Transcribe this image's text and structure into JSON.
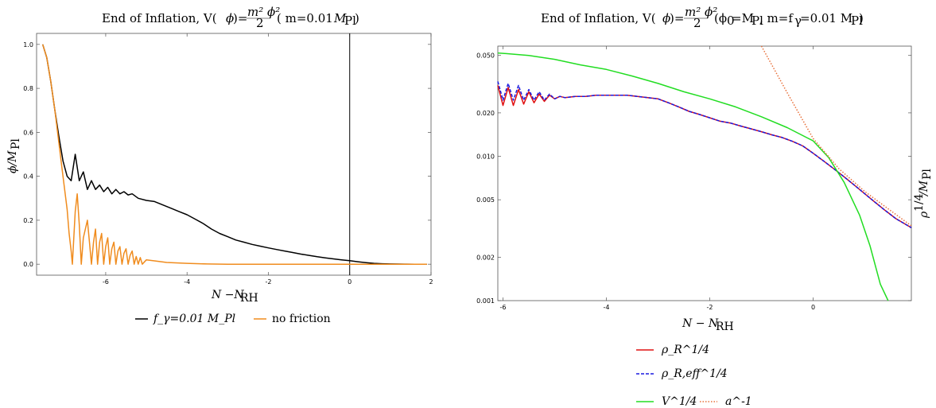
{
  "chart_data": [
    {
      "type": "line",
      "title": "End of Inflation, V(ϕ)= m²ϕ² / 2  ( m=0.01 M_Pl)",
      "title_parts": {
        "pre": "End of Inflation, V(",
        "phi": "ϕ",
        "mid": ")=",
        "num": "m² ϕ²",
        "den": "2",
        "post": "( m=0.01 ",
        "M": "M",
        "sub": "Pl",
        "close": ")"
      },
      "xlabel": "N −N_RH",
      "xlabel_parts": {
        "main": "N −N",
        "sub": "RH"
      },
      "ylabel": "ϕ/M_Pl",
      "ylabel_parts": {
        "main": "ϕ/M",
        "sub": "Pl"
      },
      "xlim": [
        -7.7,
        2.0
      ],
      "ylim": [
        -0.05,
        1.05
      ],
      "x_ticks": [
        -6,
        -4,
        -2,
        0,
        2
      ],
      "x_tick_labels": [
        "-6",
        "-4",
        "-2",
        "0",
        "2"
      ],
      "y_ticks": [
        0.0,
        0.2,
        0.4,
        0.6,
        0.8,
        1.0
      ],
      "y_tick_labels": [
        "0.0",
        "0.2",
        "0.4",
        "0.6",
        "0.8",
        "1.0"
      ],
      "vertical_line_x": 0,
      "legend_position": "bottom",
      "series": [
        {
          "name": "f_γ=0.01 M_Pl",
          "color": "#000000",
          "x": [
            -7.55,
            -7.45,
            -7.35,
            -7.25,
            -7.15,
            -7.05,
            -6.95,
            -6.85,
            -6.75,
            -6.65,
            -6.55,
            -6.45,
            -6.35,
            -6.25,
            -6.15,
            -6.05,
            -5.95,
            -5.85,
            -5.75,
            -5.65,
            -5.55,
            -5.45,
            -5.35,
            -5.2,
            -5.0,
            -4.8,
            -4.6,
            -4.4,
            -4.2,
            -4.0,
            -3.8,
            -3.6,
            -3.4,
            -3.2,
            -3.0,
            -2.8,
            -2.6,
            -2.4,
            -2.2,
            -2.0,
            -1.8,
            -1.6,
            -1.4,
            -1.2,
            -1.0,
            -0.8,
            -0.6,
            -0.4,
            -0.2,
            0.0,
            0.2,
            0.4,
            0.6,
            0.8,
            1.0,
            1.2,
            1.4,
            1.6,
            1.9
          ],
          "y": [
            1.0,
            0.94,
            0.83,
            0.7,
            0.58,
            0.47,
            0.4,
            0.38,
            0.5,
            0.38,
            0.42,
            0.34,
            0.38,
            0.34,
            0.36,
            0.33,
            0.35,
            0.32,
            0.34,
            0.32,
            0.33,
            0.315,
            0.32,
            0.3,
            0.29,
            0.285,
            0.27,
            0.255,
            0.24,
            0.225,
            0.205,
            0.185,
            0.16,
            0.14,
            0.125,
            0.11,
            0.1,
            0.09,
            0.082,
            0.074,
            0.067,
            0.06,
            0.053,
            0.046,
            0.04,
            0.034,
            0.029,
            0.024,
            0.02,
            0.016,
            0.011,
            0.007,
            0.004,
            0.002,
            0.001,
            0.0005,
            0.0002,
            0.0001,
            0.0
          ]
        },
        {
          "name": "no friction",
          "color": "#f08c1e",
          "x": [
            -7.55,
            -7.45,
            -7.35,
            -7.25,
            -7.15,
            -7.05,
            -6.95,
            -6.9,
            -6.85,
            -6.82,
            -6.75,
            -6.7,
            -6.65,
            -6.6,
            -6.55,
            -6.45,
            -6.4,
            -6.35,
            -6.3,
            -6.25,
            -6.2,
            -6.15,
            -6.1,
            -6.05,
            -6.0,
            -5.95,
            -5.9,
            -5.85,
            -5.8,
            -5.75,
            -5.7,
            -5.65,
            -5.6,
            -5.55,
            -5.5,
            -5.45,
            -5.4,
            -5.35,
            -5.3,
            -5.25,
            -5.2,
            -5.15,
            -5.1,
            -5.0,
            -4.8,
            -4.5,
            -4.0,
            -3.5,
            -3.0,
            -2.0,
            -1.0,
            0.0,
            1.0,
            1.9
          ],
          "y": [
            1.0,
            0.94,
            0.83,
            0.7,
            0.55,
            0.4,
            0.25,
            0.14,
            0.06,
            0.0,
            0.24,
            0.32,
            0.18,
            0.0,
            0.12,
            0.2,
            0.1,
            0.0,
            0.1,
            0.16,
            0.0,
            0.1,
            0.14,
            0.0,
            0.08,
            0.12,
            0.0,
            0.07,
            0.1,
            0.0,
            0.06,
            0.08,
            0.0,
            0.05,
            0.07,
            0.0,
            0.04,
            0.06,
            0.0,
            0.035,
            0.0,
            0.03,
            0.0,
            0.02,
            0.015,
            0.008,
            0.004,
            0.001,
            0.0,
            0.0,
            0.0,
            0.0,
            0.0,
            0.0
          ]
        }
      ]
    },
    {
      "type": "line",
      "title": "End of Inflation, V(ϕ)= m²ϕ² / 2  (ϕ0=M_Pl, m=f_γ=0.01 M_Pl)",
      "title_parts": {
        "pre": "End of Inflation, V(",
        "phi": "ϕ",
        "mid": ")=",
        "num": "m² ϕ²",
        "den": "2",
        "post": "(ϕ",
        "sub0": "0",
        "eq": "=M",
        "sub1": "Pl",
        "mid2": ", m=f",
        "subg": "γ",
        "eq2": "=0.01 M",
        "sub2": "Pl",
        "close": ")"
      },
      "xlabel": "N − N_RH",
      "xlabel_parts": {
        "main": "N − N",
        "sub": "RH"
      },
      "ylabel": "ρ^1/4/M_Pl",
      "ylabel_parts": {
        "main": "ρ",
        "sup": "1/4",
        "mid": "/M",
        "sub": "Pl"
      },
      "yscale": "log",
      "xlim": [
        -6.1,
        1.9
      ],
      "ylim": [
        0.001,
        0.058
      ],
      "x_ticks": [
        -6,
        -4,
        -2,
        0
      ],
      "x_tick_labels": [
        "-6",
        "-4",
        "-2",
        "0"
      ],
      "y_ticks": [
        0.001,
        0.002,
        0.005,
        0.01,
        0.02,
        0.05
      ],
      "y_tick_labels": [
        "0.001",
        "0.002",
        "0.005",
        "0.010",
        "0.020",
        "0.050"
      ],
      "legend_position": "bottom",
      "series": [
        {
          "name": "ρ_R^1/4",
          "color": "#e01010",
          "style": "solid",
          "x": [
            -6.1,
            -6.0,
            -5.9,
            -5.8,
            -5.7,
            -5.6,
            -5.5,
            -5.4,
            -5.3,
            -5.2,
            -5.1,
            -5.0,
            -4.9,
            -4.8,
            -4.6,
            -4.4,
            -4.2,
            -4.0,
            -3.8,
            -3.6,
            -3.4,
            -3.2,
            -3.0,
            -2.8,
            -2.6,
            -2.4,
            -2.2,
            -2.0,
            -1.8,
            -1.6,
            -1.4,
            -1.2,
            -1.0,
            -0.8,
            -0.6,
            -0.4,
            -0.2,
            0.0,
            0.2,
            0.4,
            0.6,
            0.8,
            1.0,
            1.2,
            1.4,
            1.6,
            1.9
          ],
          "y": [
            0.031,
            0.0225,
            0.03,
            0.0225,
            0.029,
            0.023,
            0.028,
            0.0235,
            0.027,
            0.024,
            0.0265,
            0.025,
            0.026,
            0.0255,
            0.026,
            0.026,
            0.0265,
            0.0265,
            0.0265,
            0.0265,
            0.026,
            0.0255,
            0.025,
            0.0235,
            0.022,
            0.0205,
            0.0195,
            0.0185,
            0.0175,
            0.017,
            0.0162,
            0.0155,
            0.0148,
            0.0141,
            0.0135,
            0.0127,
            0.0118,
            0.0105,
            0.0093,
            0.0082,
            0.0072,
            0.0063,
            0.0055,
            0.0048,
            0.0042,
            0.0037,
            0.0032
          ]
        },
        {
          "name": "ρ_R,eff^1/4",
          "color": "#1a1ae0",
          "style": "dashed",
          "x": [
            -6.1,
            -6.0,
            -5.9,
            -5.8,
            -5.7,
            -5.6,
            -5.5,
            -5.4,
            -5.3,
            -5.2,
            -5.1,
            -5.0,
            -4.9,
            -4.8,
            -4.6,
            -4.4,
            -4.2,
            -4.0,
            -3.8,
            -3.6,
            -3.4,
            -3.2,
            -3.0,
            -2.8,
            -2.6,
            -2.4,
            -2.2,
            -2.0,
            -1.8,
            -1.6,
            -1.4,
            -1.2,
            -1.0,
            -0.8,
            -0.6,
            -0.4,
            -0.2,
            0.0,
            0.2,
            0.4,
            0.6,
            0.8,
            1.0,
            1.2,
            1.4,
            1.6,
            1.9
          ],
          "y": [
            0.033,
            0.0245,
            0.032,
            0.0245,
            0.031,
            0.0245,
            0.029,
            0.0245,
            0.028,
            0.0245,
            0.027,
            0.025,
            0.026,
            0.0255,
            0.026,
            0.026,
            0.0265,
            0.0265,
            0.0265,
            0.0265,
            0.026,
            0.0255,
            0.025,
            0.0235,
            0.022,
            0.0205,
            0.0195,
            0.0185,
            0.0175,
            0.017,
            0.0162,
            0.0155,
            0.0148,
            0.0141,
            0.0135,
            0.0127,
            0.0118,
            0.0105,
            0.0093,
            0.0082,
            0.0072,
            0.0063,
            0.0055,
            0.0048,
            0.0042,
            0.0037,
            0.0032
          ]
        },
        {
          "name": "V^1/4",
          "color": "#22dd22",
          "style": "solid",
          "x": [
            -6.1,
            -5.8,
            -5.5,
            -5.0,
            -4.5,
            -4.0,
            -3.5,
            -3.0,
            -2.5,
            -2.0,
            -1.5,
            -1.0,
            -0.5,
            0.0,
            0.3,
            0.6,
            0.9,
            1.1,
            1.3,
            1.45
          ],
          "y": [
            0.052,
            0.051,
            0.05,
            0.047,
            0.043,
            0.04,
            0.036,
            0.032,
            0.028,
            0.025,
            0.022,
            0.0188,
            0.0158,
            0.0128,
            0.0098,
            0.0066,
            0.0039,
            0.0024,
            0.0013,
            0.001
          ]
        },
        {
          "name": "a^-1",
          "color": "#e8703a",
          "style": "dotted",
          "x": [
            -1.0,
            -0.5,
            0.0,
            0.5,
            1.0,
            1.5,
            1.9
          ],
          "y": [
            0.058,
            0.0275,
            0.0133,
            0.0082,
            0.0057,
            0.0042,
            0.0033
          ]
        }
      ]
    }
  ]
}
